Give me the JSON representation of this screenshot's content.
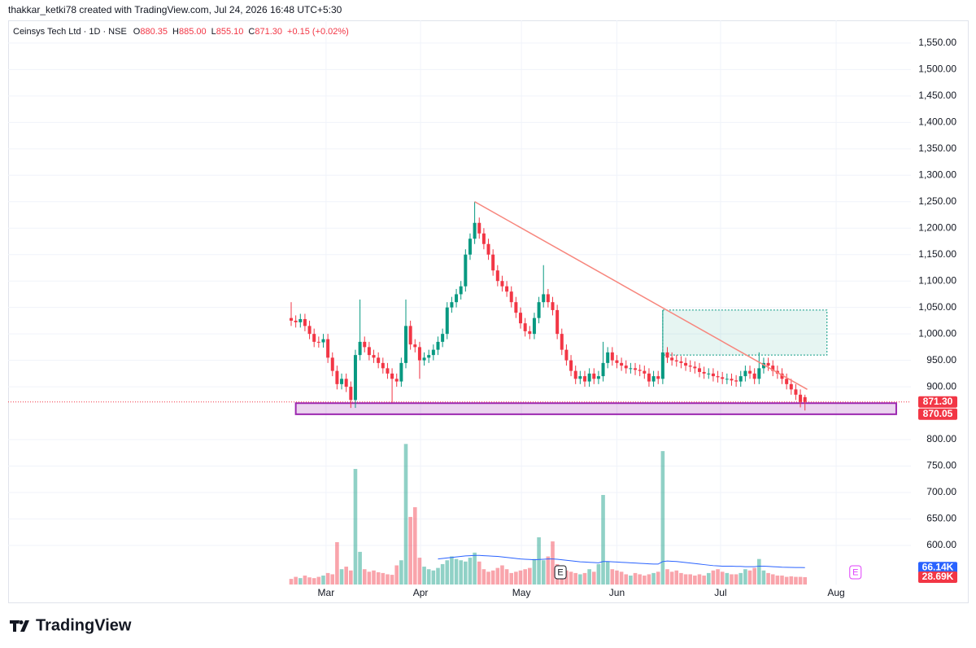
{
  "header": "thakkar_ketki78 created with TradingView.com, Jul 24, 2026 16:48 UTC+5:30",
  "footer": "TradingView",
  "chart_data": {
    "type": "candlestick",
    "legend": {
      "symbol": "Ceinsys Tech Ltd · 1D · NSE",
      "fields": [
        {
          "key": "O",
          "value": "880.35"
        },
        {
          "key": "H",
          "value": "885.00"
        },
        {
          "key": "L",
          "value": "855.10"
        },
        {
          "key": "C",
          "value": "871.30"
        }
      ],
      "change": "+0.15 (+0.02%)"
    },
    "up_color": "#089981",
    "down_color": "#f23645",
    "volume_ma_color": "#2962ff",
    "grid": true,
    "xlim": [
      -61.7,
      135.1
    ],
    "xticks": [
      {
        "value": 7.6,
        "label": "Mar"
      },
      {
        "value": 28.2,
        "label": "Apr"
      },
      {
        "value": 50.2,
        "label": "May"
      },
      {
        "value": 71,
        "label": "Jun"
      },
      {
        "value": 93.6,
        "label": "Jul"
      },
      {
        "value": 118.8,
        "label": "Aug"
      }
    ],
    "ylim": [
      526,
      1593
    ],
    "yticks": [
      {
        "value": 600,
        "label": "600.00"
      },
      {
        "value": 650,
        "label": "650.00"
      },
      {
        "value": 700,
        "label": "700.00"
      },
      {
        "value": 750,
        "label": "750.00"
      },
      {
        "value": 800,
        "label": "800.00"
      },
      {
        "value": 900,
        "label": "900.00"
      },
      {
        "value": 950,
        "label": "950.00"
      },
      {
        "value": 1000,
        "label": "1,000.00"
      },
      {
        "value": 1050,
        "label": "1,050.00"
      },
      {
        "value": 1100,
        "label": "1,100.00"
      },
      {
        "value": 1150,
        "label": "1,150.00"
      },
      {
        "value": 1200,
        "label": "1,200.00"
      },
      {
        "value": 1250,
        "label": "1,250.00"
      },
      {
        "value": 1300,
        "label": "1,300.00"
      },
      {
        "value": 1350,
        "label": "1,350.00"
      },
      {
        "value": 1400,
        "label": "1,400.00"
      },
      {
        "value": 1450,
        "label": "1,450.00"
      },
      {
        "value": 1500,
        "label": "1,500.00"
      },
      {
        "value": 1550,
        "label": "1,550.00"
      }
    ],
    "volume_ylim": [
      0,
      600000
    ],
    "open": [
      1030,
      1025,
      1022,
      1028,
      1015,
      1000,
      985,
      984,
      990,
      955,
      930,
      905,
      915,
      900,
      875,
      960,
      985,
      975,
      960,
      955,
      945,
      935,
      925,
      915,
      910,
      945,
      1015,
      980,
      975,
      950,
      955,
      960,
      970,
      985,
      1000,
      1050,
      1060,
      1075,
      1090,
      1150,
      1180,
      1210,
      1190,
      1170,
      1150,
      1120,
      1100,
      1090,
      1080,
      1060,
      1040,
      1020,
      1005,
      1000,
      1030,
      1060,
      1075,
      1060,
      1045,
      1000,
      970,
      950,
      930,
      915,
      920,
      910,
      925,
      915,
      920,
      945,
      965,
      950,
      945,
      940,
      935,
      935,
      932,
      930,
      925,
      910,
      920,
      915,
      965,
      955,
      950,
      948,
      945,
      940,
      938,
      935,
      928,
      925,
      925,
      920,
      918,
      915,
      915,
      912,
      910,
      920,
      930,
      925,
      915,
      935,
      945,
      940,
      930,
      925,
      915,
      905,
      895,
      885,
      880.35
    ],
    "high": [
      1060,
      1035,
      1038,
      1038,
      1025,
      1010,
      995,
      1000,
      1000,
      965,
      940,
      925,
      925,
      910,
      970,
      1065,
      995,
      985,
      970,
      965,
      955,
      945,
      935,
      925,
      955,
      1065,
      1025,
      990,
      985,
      965,
      970,
      980,
      995,
      1010,
      1060,
      1070,
      1085,
      1100,
      1160,
      1190,
      1250,
      1220,
      1200,
      1180,
      1160,
      1130,
      1110,
      1100,
      1090,
      1070,
      1050,
      1030,
      1015,
      1040,
      1070,
      1130,
      1085,
      1070,
      1055,
      1010,
      980,
      960,
      940,
      930,
      930,
      935,
      935,
      930,
      985,
      975,
      975,
      960,
      955,
      950,
      945,
      945,
      942,
      940,
      935,
      930,
      930,
      1045,
      975,
      965,
      960,
      958,
      955,
      950,
      948,
      945,
      938,
      935,
      935,
      930,
      928,
      925,
      925,
      922,
      930,
      940,
      940,
      935,
      965,
      955,
      955,
      950,
      940,
      935,
      925,
      915,
      905,
      895,
      885
    ],
    "low": [
      1015,
      1012,
      1012,
      1005,
      990,
      975,
      974,
      974,
      945,
      920,
      895,
      895,
      890,
      860,
      860,
      950,
      965,
      950,
      945,
      935,
      925,
      915,
      870,
      900,
      900,
      935,
      970,
      965,
      915,
      940,
      945,
      950,
      960,
      975,
      990,
      1040,
      1050,
      1065,
      1080,
      1140,
      1170,
      1180,
      1160,
      1140,
      1110,
      1090,
      1080,
      1070,
      1050,
      1030,
      1010,
      995,
      990,
      990,
      1020,
      1050,
      1050,
      1035,
      990,
      960,
      940,
      920,
      905,
      905,
      900,
      900,
      905,
      905,
      910,
      935,
      940,
      935,
      930,
      925,
      925,
      922,
      920,
      915,
      900,
      900,
      905,
      905,
      945,
      940,
      938,
      935,
      930,
      928,
      925,
      918,
      915,
      915,
      910,
      908,
      905,
      905,
      902,
      900,
      900,
      910,
      915,
      905,
      905,
      925,
      930,
      920,
      915,
      905,
      895,
      885,
      875,
      861,
      855.1
    ],
    "close": [
      1025,
      1022,
      1028,
      1015,
      1000,
      985,
      984,
      990,
      955,
      930,
      905,
      915,
      900,
      875,
      960,
      985,
      975,
      960,
      955,
      945,
      935,
      925,
      915,
      910,
      945,
      1015,
      980,
      975,
      950,
      955,
      960,
      970,
      985,
      1000,
      1050,
      1060,
      1075,
      1090,
      1150,
      1180,
      1210,
      1190,
      1170,
      1150,
      1120,
      1100,
      1090,
      1080,
      1060,
      1040,
      1020,
      1005,
      1000,
      1030,
      1060,
      1075,
      1060,
      1045,
      1000,
      970,
      950,
      930,
      915,
      920,
      910,
      925,
      915,
      920,
      945,
      965,
      950,
      945,
      940,
      935,
      935,
      932,
      930,
      925,
      910,
      920,
      915,
      965,
      955,
      950,
      948,
      945,
      940,
      938,
      935,
      928,
      925,
      925,
      920,
      918,
      915,
      915,
      912,
      910,
      920,
      930,
      925,
      915,
      935,
      945,
      940,
      930,
      925,
      915,
      905,
      895,
      885,
      871.15,
      871.3
    ],
    "volume": [
      22000,
      30000,
      25000,
      35000,
      28000,
      25000,
      30000,
      35000,
      45000,
      40000,
      166000,
      60000,
      70000,
      55000,
      453000,
      128000,
      60000,
      50000,
      55000,
      48000,
      45000,
      40000,
      38000,
      75000,
      95000,
      551000,
      265000,
      303000,
      105000,
      70000,
      60000,
      55000,
      65000,
      80000,
      95000,
      110000,
      100000,
      95000,
      90000,
      105000,
      125000,
      90000,
      60000,
      50000,
      55000,
      65000,
      75000,
      60000,
      45000,
      50000,
      55000,
      60000,
      65000,
      100000,
      185000,
      95000,
      110000,
      169000,
      80000,
      70000,
      55000,
      50000,
      45000,
      40000,
      45000,
      60000,
      50000,
      80000,
      351000,
      90000,
      60000,
      55000,
      50000,
      40000,
      35000,
      45000,
      40000,
      35000,
      40000,
      45000,
      50000,
      523000,
      60000,
      50000,
      55000,
      45000,
      40000,
      40000,
      35000,
      40000,
      35000,
      45000,
      55000,
      60000,
      50000,
      45000,
      40000,
      40000,
      45000,
      60000,
      55000,
      65000,
      100000,
      55000,
      45000,
      40000,
      35000,
      35000,
      30000,
      32000,
      30000,
      30000,
      28690
    ],
    "volume_ma": [
      null,
      null,
      null,
      null,
      null,
      null,
      null,
      null,
      null,
      null,
      null,
      null,
      null,
      null,
      null,
      null,
      null,
      null,
      null,
      null,
      null,
      null,
      null,
      null,
      null,
      null,
      null,
      null,
      null,
      null,
      null,
      null,
      100000,
      102000,
      104000,
      106000,
      108000,
      110000,
      112000,
      113000,
      114000,
      114000,
      113000,
      112000,
      111000,
      110000,
      108000,
      106000,
      104000,
      102000,
      100000,
      99000,
      98000,
      97000,
      98000,
      99000,
      100000,
      100000,
      99000,
      97000,
      95000,
      93000,
      91000,
      89000,
      88000,
      87000,
      86000,
      85000,
      90000,
      90000,
      89000,
      88000,
      87000,
      86000,
      85000,
      84000,
      83000,
      82000,
      81000,
      80000,
      80000,
      90000,
      92000,
      91000,
      90000,
      88000,
      86000,
      84000,
      82000,
      80000,
      78000,
      76000,
      74000,
      73000,
      72000,
      72000,
      72000,
      71000,
      71000,
      70000,
      70000,
      70000,
      72000,
      72000,
      71000,
      70000,
      69000,
      68000,
      67500,
      67000,
      66800,
      66500,
      66140
    ],
    "price_labels": [
      {
        "value": 871.3,
        "label": "871.30"
      },
      {
        "value": 870.05,
        "label": "870.05"
      }
    ],
    "volume_labels": [
      {
        "value": 66140,
        "label": "66.14K",
        "color": "#2962ff"
      },
      {
        "value": 28690,
        "label": "28.69K",
        "color": "#f23645"
      }
    ],
    "trendline": {
      "x": [
        40,
        112.5
      ],
      "y": [
        1250,
        895
      ],
      "color": "#f7867d"
    },
    "position_box": {
      "x": [
        81,
        116.8
      ],
      "y": [
        960,
        1045
      ],
      "color": "#089981"
    },
    "support_zone": {
      "x": [
        1,
        131.9
      ],
      "y": [
        848,
        869
      ],
      "color": "#9c27b0"
    },
    "events": [
      {
        "x": 58.7,
        "label": "E",
        "color": "#131722"
      },
      {
        "x": 123,
        "label": "E",
        "color": "#e040fb"
      }
    ]
  }
}
